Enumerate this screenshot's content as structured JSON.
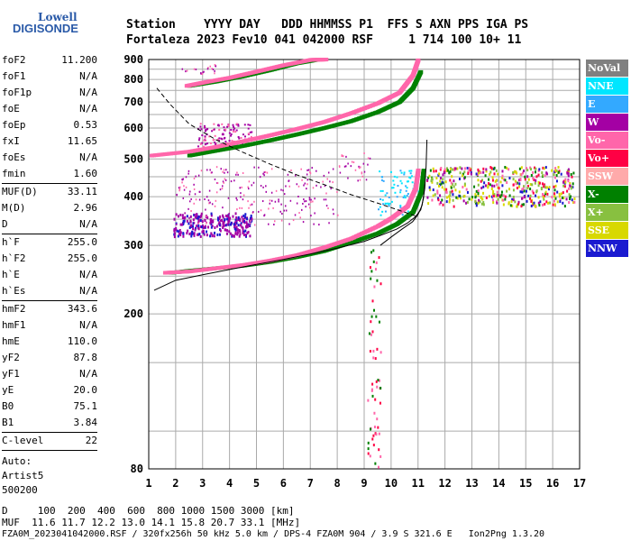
{
  "logo": {
    "line1": "Lowell",
    "line2": "DIGISONDE"
  },
  "header": {
    "row1": "Station    YYYY DAY   DDD HHMMSS P1  FFS S AXN PPS IGA PS",
    "row2": "Fortaleza 2023 Fev10 041 042000 RSF     1 714 100 10+ 11"
  },
  "params_group1": [
    {
      "key": "foF2",
      "value": "11.200"
    },
    {
      "key": "foF1",
      "value": "N/A"
    },
    {
      "key": "foF1p",
      "value": "N/A"
    },
    {
      "key": "foE",
      "value": "N/A"
    },
    {
      "key": "foEp",
      "value": "0.53"
    },
    {
      "key": "fxI",
      "value": "11.65"
    },
    {
      "key": "foEs",
      "value": "N/A"
    },
    {
      "key": "fmin",
      "value": "1.60"
    }
  ],
  "params_group2": [
    {
      "key": "MUF(D)",
      "value": "33.11"
    },
    {
      "key": "M(D)",
      "value": "2.96"
    },
    {
      "key": "D",
      "value": "N/A"
    }
  ],
  "params_group3": [
    {
      "key": "h`F",
      "value": "255.0"
    },
    {
      "key": "h`F2",
      "value": "255.0"
    },
    {
      "key": "h`E",
      "value": "N/A"
    },
    {
      "key": "h`Es",
      "value": "N/A"
    }
  ],
  "params_group4": [
    {
      "key": "hmF2",
      "value": "343.6"
    },
    {
      "key": "hmF1",
      "value": "N/A"
    },
    {
      "key": "hmE",
      "value": "110.0"
    },
    {
      "key": "yF2",
      "value": "87.8"
    },
    {
      "key": "yF1",
      "value": "N/A"
    },
    {
      "key": "yE",
      "value": "20.0"
    },
    {
      "key": "B0",
      "value": "75.1"
    },
    {
      "key": "B1",
      "value": "3.84"
    }
  ],
  "params_group5": [
    {
      "key": "C-level",
      "value": "22"
    }
  ],
  "auto": {
    "line1": "Auto:",
    "line2": "Artist5",
    "line3": "500200"
  },
  "footer": {
    "row1": "D     100  200  400  600  800 1000 1500 3000 [km]",
    "row2": "MUF  11.6 11.7 12.2 13.0 14.1 15.8 20.7 33.1 [MHz]",
    "row3": "FZA0M_2023041042000.RSF / 320fx256h 50 kHz 5.0 km / DPS-4 FZA0M 904 / 3.9 S 321.6 E   Ion2Png 1.3.20"
  },
  "legend": [
    {
      "label": "NoVal",
      "color": "#808080",
      "text": "#ffffff"
    },
    {
      "label": "NNE",
      "color": "#00e6ff",
      "text": "#ffffff"
    },
    {
      "label": "E",
      "color": "#33a9ff",
      "text": "#ffffff"
    },
    {
      "label": "W",
      "color": "#a400a4",
      "text": "#ffffff"
    },
    {
      "label": "Vo-",
      "color": "#ff66aa",
      "text": "#ffffff"
    },
    {
      "label": "Vo+",
      "color": "#ff0044",
      "text": "#ffffff"
    },
    {
      "label": "SSW",
      "color": "#ffaaaa",
      "text": "#ffffff"
    },
    {
      "label": "X-",
      "color": "#008000",
      "text": "#ffffff"
    },
    {
      "label": "X+",
      "color": "#88c040",
      "text": "#ffffff"
    },
    {
      "label": "SSE",
      "color": "#d8d800",
      "text": "#ffffff"
    },
    {
      "label": "NNW",
      "color": "#1a1ad0",
      "text": "#ffffff"
    }
  ],
  "chart_data": {
    "type": "scatter",
    "title": "",
    "xlabel": "",
    "ylabel": "",
    "xlim": [
      1,
      17
    ],
    "ylim": [
      80,
      900
    ],
    "y_scale": "log",
    "x_ticks": [
      1,
      2,
      3,
      4,
      5,
      6,
      7,
      8,
      9,
      10,
      11,
      12,
      13,
      14,
      15,
      16,
      17
    ],
    "y_ticks": [
      80,
      200,
      300,
      400,
      500,
      600,
      700,
      800,
      900
    ],
    "grid": true,
    "traces": [
      {
        "name": "X-",
        "color": "#008000",
        "x": [
          1.8,
          2.5,
          3.5,
          4.5,
          5.5,
          6.5,
          7.5,
          8.5,
          9.5,
          10.2,
          10.8,
          11.1,
          11.2
        ],
        "y": [
          255,
          258,
          262,
          266,
          272,
          280,
          290,
          305,
          322,
          340,
          365,
          410,
          470
        ]
      },
      {
        "name": "Vo-",
        "color": "#ff66aa",
        "x": [
          1.6,
          2.5,
          3.5,
          4.5,
          5.5,
          6.5,
          7.5,
          8.5,
          9.5,
          10.0,
          10.6,
          10.9,
          11.0
        ],
        "y": [
          255,
          257,
          262,
          267,
          274,
          283,
          296,
          312,
          336,
          352,
          378,
          420,
          470
        ]
      },
      {
        "name": "X-",
        "color": "#008000",
        "x": [
          2.5,
          3.5,
          4.5,
          5.5,
          6.5,
          7.5,
          8.5,
          9.5,
          10.3,
          10.8,
          11.1
        ],
        "y": [
          510,
          525,
          540,
          558,
          578,
          600,
          625,
          660,
          700,
          760,
          840
        ]
      },
      {
        "name": "Vo-",
        "color": "#ff66aa",
        "x": [
          1.1,
          2.5,
          3.5,
          4.5,
          5.5,
          6.5,
          7.5,
          8.5,
          9.5,
          10.3,
          10.8,
          11.0
        ],
        "y": [
          510,
          522,
          537,
          555,
          575,
          597,
          622,
          655,
          695,
          740,
          820,
          900
        ]
      },
      {
        "name": "X-",
        "color": "#008000",
        "x": [
          2.5,
          3.5,
          4.5,
          5.5,
          6.5,
          7.3
        ],
        "y": [
          770,
          790,
          815,
          845,
          880,
          900
        ]
      },
      {
        "name": "Vo-",
        "color": "#ff66aa",
        "x": [
          2.4,
          3.0,
          4.0,
          5.0,
          6.0,
          7.0,
          7.6
        ],
        "y": [
          770,
          785,
          808,
          838,
          870,
          898,
          900
        ]
      }
    ],
    "profile_curve": {
      "x": [
        1.2,
        2,
        3,
        4,
        5,
        6,
        7,
        8,
        9,
        9.6,
        10.2,
        10.6,
        10.9,
        11.1,
        11.2,
        11.25
      ],
      "y": [
        230,
        244,
        252,
        260,
        268,
        276,
        285,
        295,
        307,
        318,
        330,
        342,
        355,
        370,
        395,
        430
      ]
    },
    "true_height_curve": {
      "x": [
        9.6,
        10.0,
        10.4,
        10.8,
        11.0,
        11.15,
        11.25,
        11.3,
        11.33
      ],
      "y": [
        300,
        315,
        330,
        345,
        360,
        380,
        420,
        480,
        560
      ]
    },
    "muf_curve": {
      "x": [
        1.3,
        1.8,
        2.5,
        3.5,
        4.5,
        5.5,
        6.5,
        7.5,
        8.5,
        9.5,
        10.5,
        11.0
      ],
      "y": [
        760,
        690,
        615,
        560,
        520,
        485,
        455,
        430,
        405,
        385,
        365,
        355
      ]
    }
  }
}
